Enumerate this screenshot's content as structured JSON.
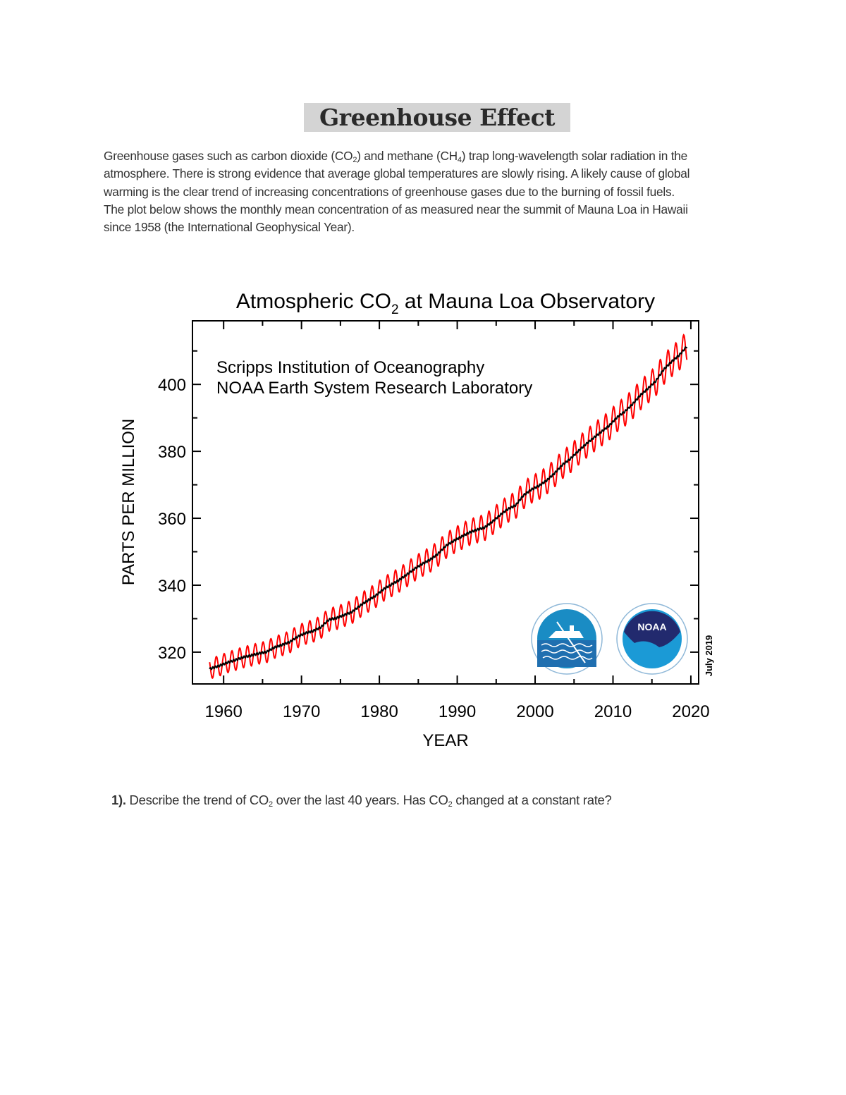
{
  "document": {
    "title": "Greenhouse Effect",
    "paragraph": {
      "l1a": "Greenhouse gases such as carbon dioxide (CO",
      "l1sub1": "2",
      "l1b": ") and methane (CH",
      "l1sub2": "4",
      "l1c": ") trap long-wavelength solar radiation in the",
      "l2": "atmosphere. There is strong evidence that average global temperatures are slowly rising. A likely cause of global",
      "l3": "warming is the clear trend of increasing concentrations of greenhouse gases due to the burning of fossil fuels.",
      "l4": "The plot below shows the monthly mean concentration of as measured near the summit of Mauna Loa in Hawaii",
      "l5": "since 1958 (the International Geophysical Year)."
    },
    "question": {
      "number": "1).",
      "a": " Describe the trend of CO",
      "sub1": "2",
      "b": " over the last 40 years. Has CO",
      "sub2": "2",
      "c": " changed at a constant rate?"
    }
  },
  "chart_data": {
    "type": "line",
    "title_a": "Atmospheric CO",
    "title_sub": "2",
    "title_b": " at Mauna Loa Observatory",
    "annotation_1": "Scripps Institution of Oceanography",
    "annotation_2": "NOAA Earth System Research Laboratory",
    "date_label": "July 2019",
    "xlabel": "YEAR",
    "ylabel": "PARTS PER MILLION",
    "xlim": [
      1956,
      2021
    ],
    "ylim": [
      310.5,
      419
    ],
    "xticks": [
      1960,
      1970,
      1980,
      1990,
      2000,
      2010,
      2020
    ],
    "yticks": [
      320,
      340,
      360,
      380,
      400
    ],
    "grid": false,
    "logos": [
      "Scripps Institution of Oceanography",
      "NOAA"
    ],
    "noaa_logo_text": "NOAA",
    "series": [
      {
        "color": "#ff0000",
        "kind": "monthly mean (seasonal cycle)",
        "seasonal_amplitude_ppm": 3.0
      },
      {
        "color": "#000000",
        "kind": "seasonally adjusted trend"
      }
    ],
    "annual_mean": {
      "years": [
        1958,
        1959,
        1960,
        1961,
        1962,
        1963,
        1964,
        1965,
        1966,
        1967,
        1968,
        1969,
        1970,
        1971,
        1972,
        1973,
        1974,
        1975,
        1976,
        1977,
        1978,
        1979,
        1980,
        1981,
        1982,
        1983,
        1984,
        1985,
        1986,
        1987,
        1988,
        1989,
        1990,
        1991,
        1992,
        1993,
        1994,
        1995,
        1996,
        1997,
        1998,
        1999,
        2000,
        2001,
        2002,
        2003,
        2004,
        2005,
        2006,
        2007,
        2008,
        2009,
        2010,
        2011,
        2012,
        2013,
        2014,
        2015,
        2016,
        2017,
        2018,
        2019
      ],
      "ppm": [
        315.2,
        315.98,
        316.91,
        317.64,
        318.45,
        318.99,
        319.62,
        320.04,
        321.37,
        322.18,
        323.05,
        324.62,
        325.68,
        326.32,
        327.46,
        329.68,
        330.19,
        331.13,
        332.03,
        333.84,
        335.41,
        336.84,
        338.76,
        340.12,
        341.48,
        343.15,
        344.87,
        346.35,
        347.61,
        349.31,
        351.69,
        353.2,
        354.45,
        355.7,
        356.54,
        357.21,
        358.96,
        360.97,
        362.74,
        363.88,
        366.84,
        368.54,
        369.71,
        371.32,
        373.45,
        375.98,
        377.7,
        379.98,
        382.09,
        384.02,
        385.83,
        387.64,
        390.1,
        391.85,
        394.06,
        396.74,
        398.81,
        401.01,
        404.41,
        406.76,
        408.72,
        411.4
      ]
    }
  }
}
